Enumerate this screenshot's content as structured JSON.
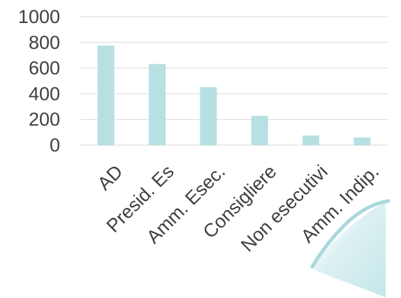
{
  "chart_data": {
    "type": "bar",
    "categories": [
      "AD",
      "Presid. Es",
      "Amm. Esec.",
      "Consigliere",
      "Non esecutivi",
      "Amm. Indip."
    ],
    "values": [
      775,
      632,
      452,
      228,
      75,
      60
    ],
    "yticks": [
      "0",
      "200",
      "400",
      "600",
      "800",
      "1000"
    ],
    "ylim": [
      0,
      1000
    ],
    "grid": true,
    "legend": "none",
    "colors": {
      "bar": "#b7e0e3",
      "grid": "#d9d9d9",
      "text": "#404040",
      "decoration_stroke": "#a9d8dc",
      "decoration_fill": "#e2f3f4"
    }
  }
}
